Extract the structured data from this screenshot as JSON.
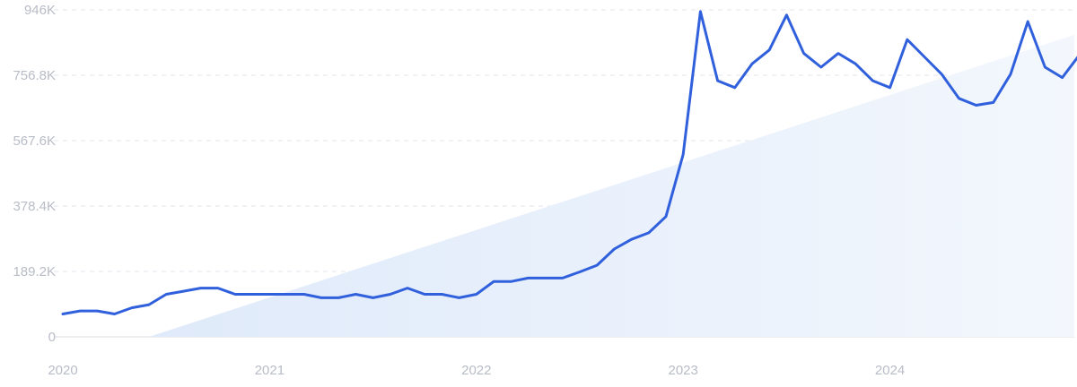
{
  "chart_data": {
    "type": "line",
    "title": "",
    "xlabel": "",
    "ylabel": "",
    "ylim": [
      0,
      946000
    ],
    "y_ticks": [
      {
        "value": 0,
        "label": "0"
      },
      {
        "value": 189200,
        "label": "189.2K"
      },
      {
        "value": 378400,
        "label": "378.4K"
      },
      {
        "value": 567600,
        "label": "567.6K"
      },
      {
        "value": 756800,
        "label": "756.8K"
      },
      {
        "value": 946000,
        "label": "946K"
      }
    ],
    "x_ticks": [
      {
        "value": "2020-01",
        "label": "2020"
      },
      {
        "value": "2021-01",
        "label": "2021"
      },
      {
        "value": "2022-01",
        "label": "2022"
      },
      {
        "value": "2023-01",
        "label": "2023"
      },
      {
        "value": "2024-01",
        "label": "2024"
      }
    ],
    "grid": "horizontal-dashed",
    "colors": {
      "line": "#3060dc",
      "trend_fill": "#e3edfb",
      "grid": "#e3e6ec",
      "tick_text": "#b8bcc6"
    },
    "trend": {
      "x": [
        "2020-06",
        "2024-12"
      ],
      "y": [
        0,
        874000
      ]
    },
    "series": [
      {
        "x": [
          "2020-01",
          "2020-02",
          "2020-03",
          "2020-04",
          "2020-05",
          "2020-06",
          "2020-07",
          "2020-08",
          "2020-09",
          "2020-10",
          "2020-11",
          "2020-12",
          "2021-01",
          "2021-02",
          "2021-03",
          "2021-04",
          "2021-05",
          "2021-06",
          "2021-07",
          "2021-08",
          "2021-09",
          "2021-10",
          "2021-11",
          "2021-12",
          "2022-01",
          "2022-02",
          "2022-03",
          "2022-04",
          "2022-05",
          "2022-06",
          "2022-07",
          "2022-08",
          "2022-09",
          "2022-10",
          "2022-11",
          "2022-12",
          "2023-01",
          "2023-02",
          "2023-03",
          "2023-04",
          "2023-05",
          "2023-06",
          "2023-07",
          "2023-08",
          "2023-09",
          "2023-10",
          "2023-11",
          "2023-12",
          "2024-01",
          "2024-02",
          "2024-03",
          "2024-04",
          "2024-05",
          "2024-06",
          "2024-07",
          "2024-08",
          "2024-09",
          "2024-10",
          "2024-11",
          "2024-12"
        ],
        "values": [
          66000,
          75000,
          75000,
          66000,
          84000,
          93000,
          123000,
          132000,
          141000,
          141000,
          123000,
          123000,
          123000,
          123000,
          123000,
          113000,
          113000,
          123000,
          113000,
          123000,
          141000,
          123000,
          123000,
          113000,
          123000,
          160000,
          160000,
          170000,
          170000,
          170000,
          188000,
          207000,
          254000,
          282000,
          301000,
          348000,
          528000,
          941000,
          741000,
          721000,
          790000,
          830000,
          931000,
          820000,
          780000,
          820000,
          790000,
          741000,
          721000,
          860000,
          810000,
          760000,
          690000,
          670000,
          678000,
          760000,
          912000,
          780000,
          750000,
          816000
        ]
      }
    ]
  }
}
